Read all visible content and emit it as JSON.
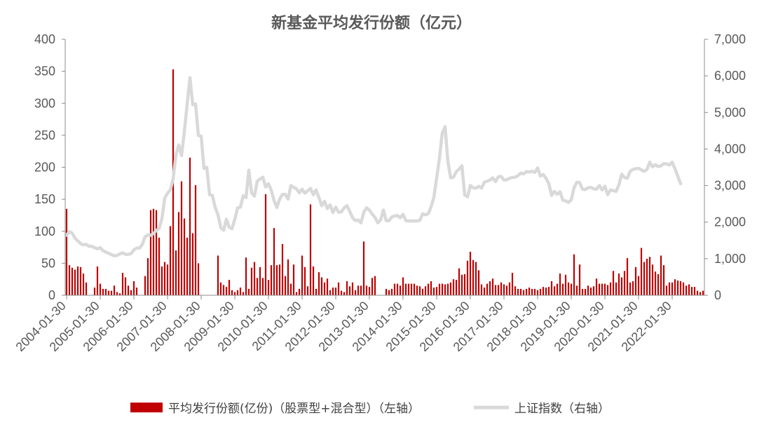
{
  "chart_data": {
    "type": "bar",
    "title": "新基金平均发行份额（亿元）",
    "legend_position": "bottom",
    "grid": false,
    "x_tick_labels": [
      "2004-01-30",
      "2005-01-30",
      "2006-01-30",
      "2007-01-30",
      "2008-01-30",
      "2009-01-30",
      "2010-01-30",
      "2011-01-30",
      "2012-01-30",
      "2013-01-30",
      "2014-01-30",
      "2015-01-30",
      "2016-01-30",
      "2017-01-30",
      "2018-01-30",
      "2019-01-30",
      "2020-01-30",
      "2021-01-30",
      "2022-01-30"
    ],
    "y_left": {
      "lim": [
        0,
        400
      ],
      "ticks": [
        "0",
        "50",
        "100",
        "150",
        "200",
        "250",
        "300",
        "350",
        "400"
      ],
      "tick_values": [
        0,
        50,
        100,
        150,
        200,
        250,
        300,
        350,
        400
      ]
    },
    "y_right": {
      "lim": [
        0,
        7000
      ],
      "ticks": [
        "0",
        "1,000",
        "2,000",
        "3,000",
        "4,000",
        "5,000",
        "6,000",
        "7,000"
      ],
      "tick_values": [
        0,
        1000,
        2000,
        3000,
        4000,
        5000,
        6000,
        7000
      ]
    },
    "series": [
      {
        "name": "平均发行份额(亿份)（股票型+混合型）（左轴）",
        "type": "bar",
        "axis": "left",
        "color": "#C00000",
        "start": "2004-01",
        "values": [
          135,
          47,
          43,
          40,
          45,
          44,
          34,
          20,
          0,
          0,
          12,
          45,
          18,
          10,
          10,
          7,
          7,
          15,
          5,
          3,
          35,
          28,
          15,
          8,
          22,
          12,
          0,
          0,
          30,
          58,
          133,
          135,
          133,
          90,
          45,
          52,
          48,
          108,
          353,
          70,
          130,
          178,
          120,
          90,
          215,
          97,
          172,
          50,
          0,
          0,
          0,
          0,
          0,
          0,
          62,
          20,
          16,
          13,
          24,
          8,
          5,
          8,
          12,
          5,
          59,
          10,
          43,
          52,
          27,
          44,
          27,
          158,
          24,
          47,
          105,
          47,
          48,
          80,
          30,
          56,
          18,
          48,
          5,
          10,
          62,
          44,
          14,
          142,
          45,
          10,
          36,
          28,
          20,
          26,
          8,
          12,
          12,
          20,
          7,
          5,
          22,
          14,
          20,
          8,
          15,
          15,
          84,
          15,
          13,
          27,
          30,
          0,
          0,
          0,
          10,
          8,
          10,
          18,
          18,
          15,
          28,
          18,
          18,
          18,
          18,
          15,
          14,
          10,
          14,
          18,
          22,
          12,
          13,
          18,
          18,
          17,
          18,
          20,
          25,
          24,
          42,
          32,
          33,
          54,
          68,
          55,
          52,
          39,
          17,
          12,
          18,
          22,
          26,
          16,
          16,
          20,
          17,
          15,
          20,
          35,
          14,
          10,
          10,
          8,
          10,
          12,
          10,
          10,
          8,
          10,
          13,
          12,
          13,
          22,
          14,
          18,
          34,
          18,
          32,
          20,
          18,
          64,
          15,
          48,
          10,
          10,
          15,
          12,
          14,
          26,
          18,
          18,
          18,
          16,
          20,
          38,
          20,
          34,
          28,
          38,
          58,
          20,
          22,
          44,
          30,
          74,
          52,
          57,
          60,
          48,
          37,
          33,
          62,
          47,
          15,
          20,
          20,
          25,
          23,
          22,
          20,
          15,
          17,
          13,
          13,
          7,
          5,
          7
        ]
      },
      {
        "name": "上证指数（右轴）",
        "type": "line",
        "axis": "right",
        "color": "#D9D9D9",
        "start": "2004-01",
        "values": [
          1640,
          1740,
          1700,
          1560,
          1490,
          1410,
          1380,
          1390,
          1340,
          1340,
          1300,
          1270,
          1300,
          1220,
          1180,
          1150,
          1110,
          1080,
          1090,
          1130,
          1160,
          1120,
          1120,
          1140,
          1240,
          1290,
          1290,
          1390,
          1600,
          1650,
          1640,
          1690,
          1770,
          1830,
          2090,
          2660,
          2790,
          2880,
          3180,
          3840,
          4110,
          3820,
          4470,
          5220,
          5950,
          5210,
          5230,
          4370,
          4350,
          3470,
          3500,
          2750,
          2730,
          2400,
          2200,
          1850,
          1780,
          2080,
          1860,
          1820,
          2080,
          2390,
          2410,
          2720,
          2670,
          3420,
          2800,
          2710,
          3120,
          3180,
          3230,
          2960,
          3050,
          2870,
          2590,
          2400,
          2630,
          2760,
          2760,
          2630,
          3000,
          2950,
          2910,
          2800,
          2900,
          2790,
          2860,
          2920,
          2750,
          2880,
          2670,
          2450,
          2570,
          2370,
          2470,
          2260,
          2410,
          2270,
          2280,
          2390,
          2450,
          2290,
          2120,
          2040,
          2060,
          1980,
          2270,
          2390,
          2330,
          2220,
          2130,
          1980,
          2060,
          2330,
          2040,
          2040,
          2140,
          2170,
          2180,
          2120,
          2210,
          2040,
          2030,
          2030,
          2030,
          2030,
          2050,
          2230,
          2200,
          2230,
          2420,
          2680,
          3210,
          3750,
          4440,
          4610,
          3660,
          3210,
          3230,
          3380,
          3450,
          3540,
          2740,
          2690,
          3000,
          2940,
          2930,
          2980,
          2930,
          3090,
          3120,
          3150,
          3210,
          3110,
          3240,
          3250,
          3150,
          3160,
          3200,
          3220,
          3230,
          3270,
          3340,
          3320,
          3380,
          3370,
          3390,
          3360,
          3480,
          3260,
          3300,
          3200,
          3050,
          2730,
          2840,
          2760,
          2830,
          2600,
          2580,
          2540,
          2610,
          2940,
          3090,
          3080,
          2900,
          2890,
          2940,
          2950,
          2910,
          2900,
          3000,
          2880,
          2980,
          2750,
          2880,
          2860,
          2840,
          3020,
          3310,
          3220,
          3200,
          3390,
          3440,
          3460,
          3470,
          3430,
          3390,
          3440,
          3640,
          3510,
          3570,
          3520,
          3540,
          3600,
          3590,
          3560,
          3640,
          3460,
          3250,
          3050
        ]
      }
    ]
  }
}
